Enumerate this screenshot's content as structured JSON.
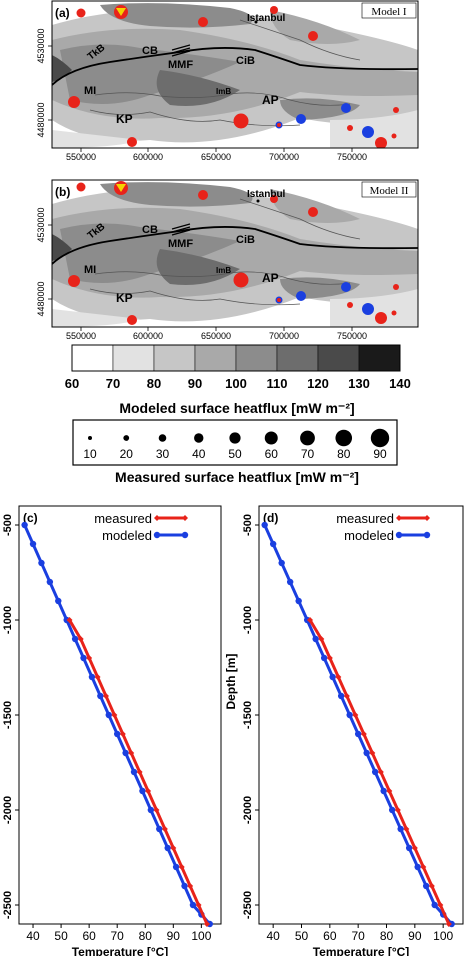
{
  "maps": [
    {
      "panel": "(a)",
      "model": "Model I",
      "x_ticks": [
        "550000",
        "600000",
        "650000",
        "700000",
        "750000"
      ],
      "y_ticks": [
        "4480000",
        "4530000"
      ],
      "place_labels": [
        "TkB",
        "CB",
        "MMF",
        "CiB",
        "MI",
        "ImB",
        "AP",
        "KP",
        "Istanbul"
      ]
    },
    {
      "panel": "(b)",
      "model": "Model II",
      "x_ticks": [
        "550000",
        "600000",
        "650000",
        "700000",
        "750000"
      ],
      "y_ticks": [
        "4480000",
        "4530000"
      ],
      "place_labels": [
        "TkB",
        "CB",
        "MMF",
        "CiB",
        "MI",
        "ImB",
        "AP",
        "KP",
        "Istanbul"
      ]
    }
  ],
  "colorbar": {
    "title": "Modeled surface heatflux [mW m⁻²]",
    "ticks": [
      "60",
      "70",
      "80",
      "90",
      "100",
      "110",
      "120",
      "130",
      "140"
    ],
    "colors": [
      "#ffffff",
      "#e2e2e2",
      "#c6c6c6",
      "#a9a9a9",
      "#8c8c8c",
      "#6d6d6d",
      "#4a4a4a",
      "#1a1a1a"
    ]
  },
  "sizelegend": {
    "title": "Measured surface heatflux [mW m⁻²]",
    "values": [
      "10",
      "20",
      "30",
      "40",
      "50",
      "60",
      "70",
      "80",
      "90"
    ]
  },
  "chart_data": [
    {
      "type": "line",
      "panel": "(c)",
      "xlabel": "Temperature [°C]",
      "ylabel": "",
      "xlim": [
        35,
        107
      ],
      "ylim": [
        -2600,
        -400
      ],
      "x_ticks": [
        40,
        50,
        60,
        70,
        80,
        90,
        100
      ],
      "y_ticks": [
        -500,
        -1000,
        -1500,
        -2000,
        -2500
      ],
      "series": [
        {
          "name": "measured",
          "color": "#e8231a",
          "x": [
            53,
            57,
            60,
            63,
            66,
            69,
            72,
            75,
            78,
            81,
            84,
            87,
            90,
            93,
            96,
            99,
            102
          ],
          "y": [
            -1000,
            -1100,
            -1200,
            -1300,
            -1400,
            -1500,
            -1600,
            -1700,
            -1800,
            -1900,
            -2000,
            -2100,
            -2200,
            -2300,
            -2400,
            -2500,
            -2600
          ]
        },
        {
          "name": "modeled",
          "color": "#1a3fe0",
          "x": [
            37,
            40,
            43,
            46,
            49,
            52,
            55,
            58,
            61,
            64,
            67,
            70,
            73,
            76,
            79,
            82,
            85,
            88,
            91,
            94,
            97,
            100,
            103
          ],
          "y": [
            -500,
            -600,
            -700,
            -800,
            -900,
            -1000,
            -1100,
            -1200,
            -1300,
            -1400,
            -1500,
            -1600,
            -1700,
            -1800,
            -1900,
            -2000,
            -2100,
            -2200,
            -2300,
            -2400,
            -2500,
            -2550,
            -2600
          ]
        }
      ]
    },
    {
      "type": "line",
      "panel": "(d)",
      "xlabel": "Temperature [°C]",
      "ylabel": "Depth [m]",
      "xlim": [
        35,
        107
      ],
      "ylim": [
        -2600,
        -400
      ],
      "x_ticks": [
        40,
        50,
        60,
        70,
        80,
        90,
        100
      ],
      "y_ticks": [
        -500,
        -1000,
        -1500,
        -2000,
        -2500
      ],
      "series": [
        {
          "name": "measured",
          "color": "#e8231a",
          "x": [
            53,
            57,
            60,
            63,
            66,
            69,
            72,
            75,
            78,
            81,
            84,
            87,
            90,
            93,
            96,
            99,
            102
          ],
          "y": [
            -1000,
            -1100,
            -1200,
            -1300,
            -1400,
            -1500,
            -1600,
            -1700,
            -1800,
            -1900,
            -2000,
            -2100,
            -2200,
            -2300,
            -2400,
            -2500,
            -2600
          ]
        },
        {
          "name": "modeled",
          "color": "#1a3fe0",
          "x": [
            37,
            40,
            43,
            46,
            49,
            52,
            55,
            58,
            61,
            64,
            67,
            70,
            73,
            76,
            79,
            82,
            85,
            88,
            91,
            94,
            97,
            100,
            103
          ],
          "y": [
            -500,
            -600,
            -700,
            -800,
            -900,
            -1000,
            -1100,
            -1200,
            -1300,
            -1400,
            -1500,
            -1600,
            -1700,
            -1800,
            -1900,
            -2000,
            -2100,
            -2200,
            -2300,
            -2400,
            -2500,
            -2550,
            -2600
          ]
        }
      ]
    }
  ]
}
